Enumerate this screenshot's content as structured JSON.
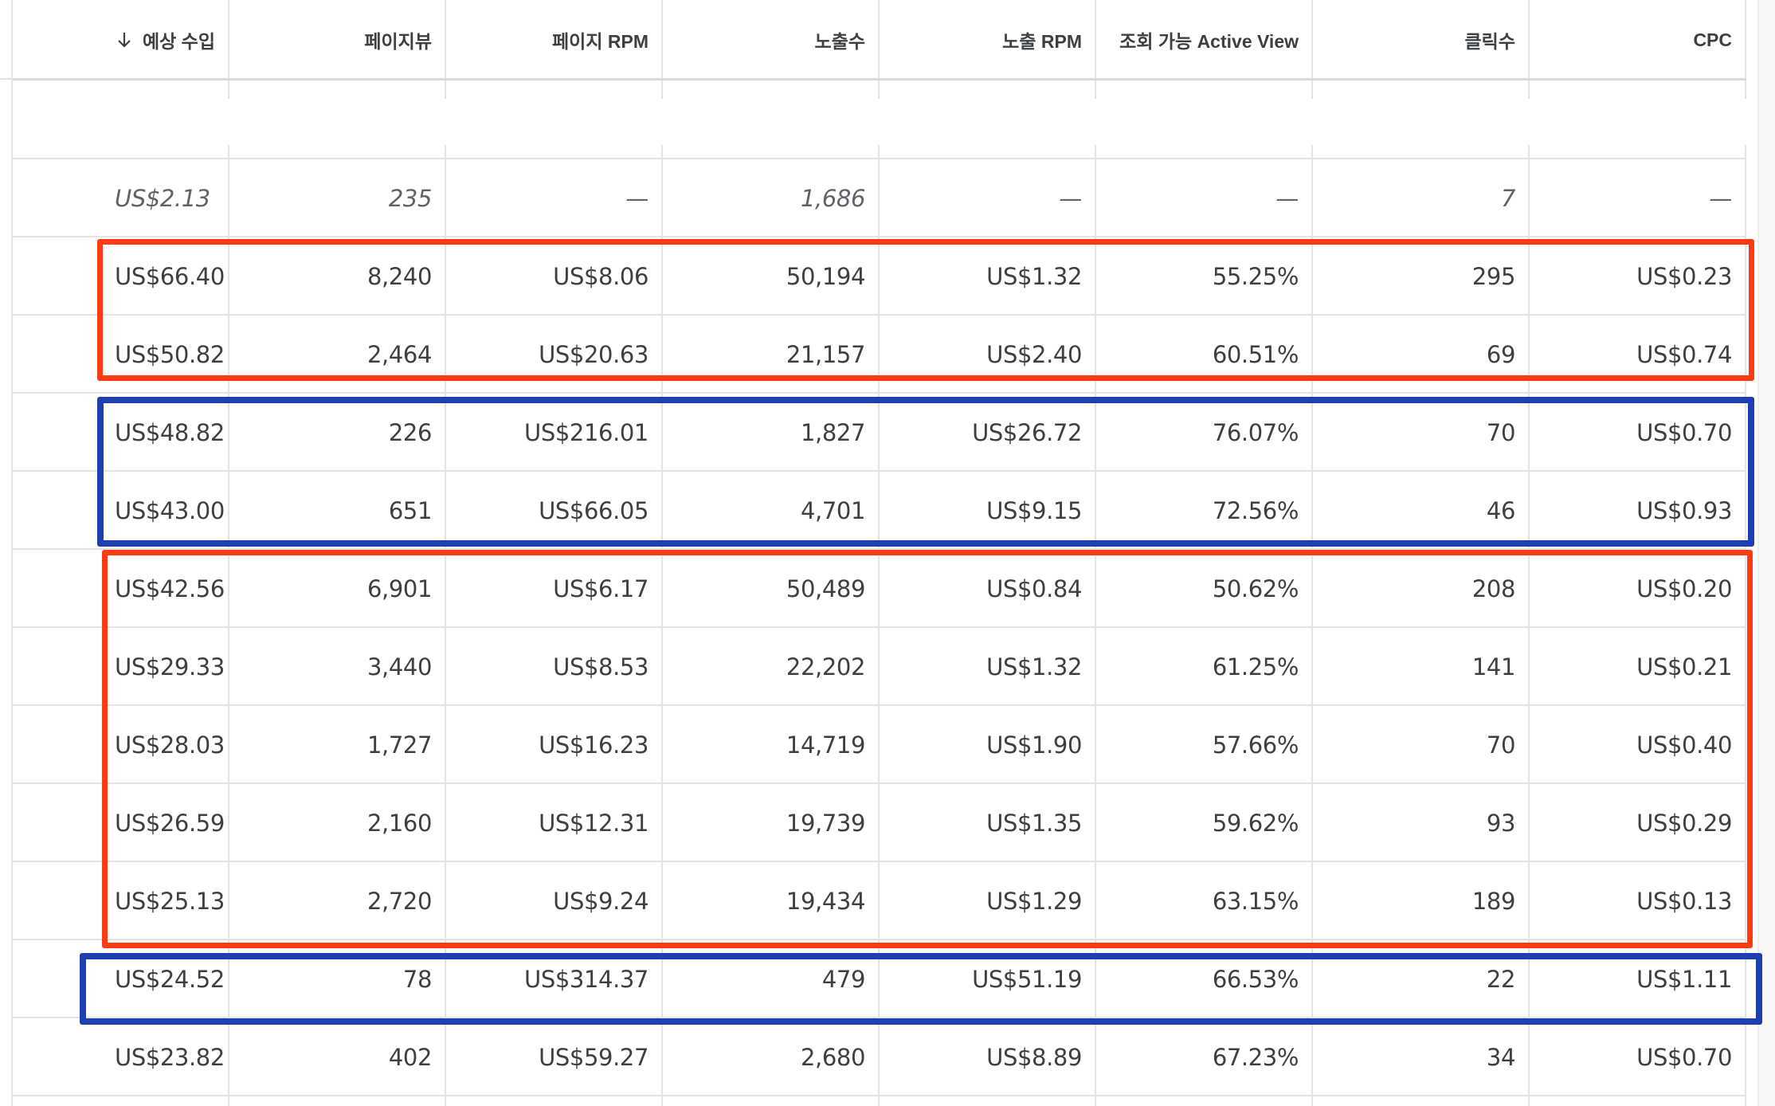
{
  "table": {
    "sort_column": "예상 수입",
    "columns": [
      {
        "label": "예상 수입"
      },
      {
        "label": "페이지뷰"
      },
      {
        "label": "페이지 RPM"
      },
      {
        "label": "노출수"
      },
      {
        "label": "노출 RPM"
      },
      {
        "label": "조회 가능 Active View"
      },
      {
        "label": "클릭수"
      },
      {
        "label": "CPC"
      }
    ],
    "summary": [
      "US$2.13",
      "235",
      "—",
      "1,686",
      "—",
      "—",
      "7",
      "—"
    ],
    "rows": [
      [
        "US$66.40",
        "8,240",
        "US$8.06",
        "50,194",
        "US$1.32",
        "55.25%",
        "295",
        "US$0.23"
      ],
      [
        "US$50.82",
        "2,464",
        "US$20.63",
        "21,157",
        "US$2.40",
        "60.51%",
        "69",
        "US$0.74"
      ],
      [
        "US$48.82",
        "226",
        "US$216.01",
        "1,827",
        "US$26.72",
        "76.07%",
        "70",
        "US$0.70"
      ],
      [
        "US$43.00",
        "651",
        "US$66.05",
        "4,701",
        "US$9.15",
        "72.56%",
        "46",
        "US$0.93"
      ],
      [
        "US$42.56",
        "6,901",
        "US$6.17",
        "50,489",
        "US$0.84",
        "50.62%",
        "208",
        "US$0.20"
      ],
      [
        "US$29.33",
        "3,440",
        "US$8.53",
        "22,202",
        "US$1.32",
        "61.25%",
        "141",
        "US$0.21"
      ],
      [
        "US$28.03",
        "1,727",
        "US$16.23",
        "14,719",
        "US$1.90",
        "57.66%",
        "70",
        "US$0.40"
      ],
      [
        "US$26.59",
        "2,160",
        "US$12.31",
        "19,739",
        "US$1.35",
        "59.62%",
        "93",
        "US$0.29"
      ],
      [
        "US$25.13",
        "2,720",
        "US$9.24",
        "19,434",
        "US$1.29",
        "63.15%",
        "189",
        "US$0.13"
      ],
      [
        "US$24.52",
        "78",
        "US$314.37",
        "479",
        "US$51.19",
        "66.53%",
        "22",
        "US$1.11"
      ],
      [
        "US$23.82",
        "402",
        "US$59.27",
        "2,680",
        "US$8.89",
        "67.23%",
        "34",
        "US$0.70"
      ]
    ]
  },
  "annotations": [
    {
      "color": "#ff3b14",
      "rows": [
        0,
        1
      ]
    },
    {
      "color": "#1d3fb0",
      "rows": [
        2,
        3
      ]
    },
    {
      "color": "#ff3b14",
      "rows": [
        4,
        8
      ]
    },
    {
      "color": "#1d3fb0",
      "rows": [
        9,
        9
      ]
    }
  ]
}
